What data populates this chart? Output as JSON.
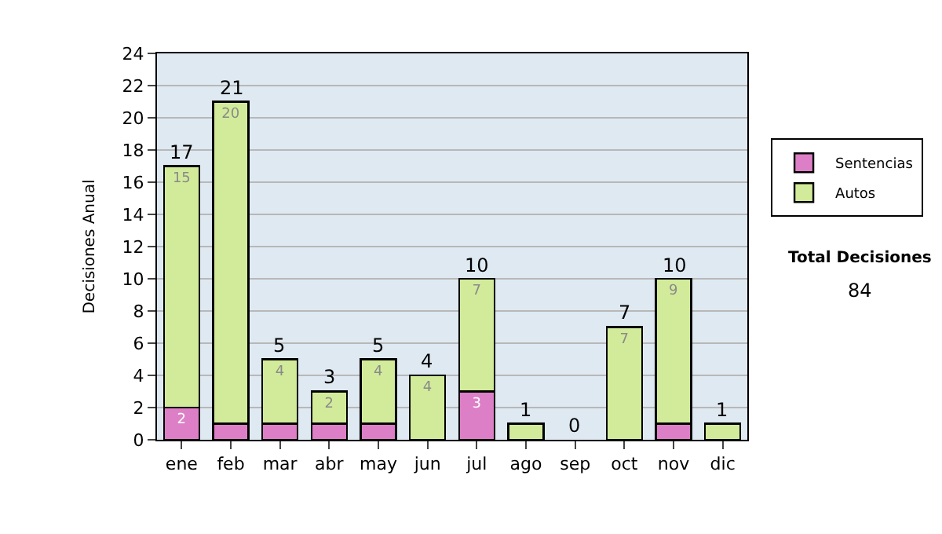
{
  "chart_data": {
    "type": "bar",
    "stacked": true,
    "ylabel": "Decisiones Anual",
    "categories": [
      "ene",
      "feb",
      "mar",
      "abr",
      "may",
      "jun",
      "jul",
      "ago",
      "sep",
      "oct",
      "nov",
      "dic"
    ],
    "series": [
      {
        "name": "Sentencias",
        "color": "#dd7fc6",
        "values": [
          2,
          1,
          1,
          1,
          1,
          0,
          3,
          0,
          0,
          0,
          1,
          0
        ],
        "value_labels": [
          "2",
          null,
          null,
          null,
          null,
          null,
          "3",
          null,
          null,
          null,
          null,
          null
        ]
      },
      {
        "name": "Autos",
        "color": "#d2eb9a",
        "values": [
          15,
          20,
          4,
          2,
          4,
          4,
          7,
          1,
          0,
          7,
          9,
          1
        ],
        "value_labels": [
          "15",
          "20",
          "4",
          "2",
          "4",
          "4",
          "7",
          null,
          null,
          "7",
          "9",
          null
        ]
      }
    ],
    "totals": [
      "17",
      "21",
      "5",
      "3",
      "5",
      "4",
      "10",
      "1",
      "0",
      "7",
      "10",
      "1"
    ],
    "ylim": [
      0,
      24
    ],
    "yticks": [
      0,
      2,
      4,
      6,
      8,
      10,
      12,
      14,
      16,
      18,
      20,
      22,
      24
    ],
    "grid": "y",
    "legend": "right",
    "annotations": [
      "Total Decisiones",
      "84"
    ]
  }
}
